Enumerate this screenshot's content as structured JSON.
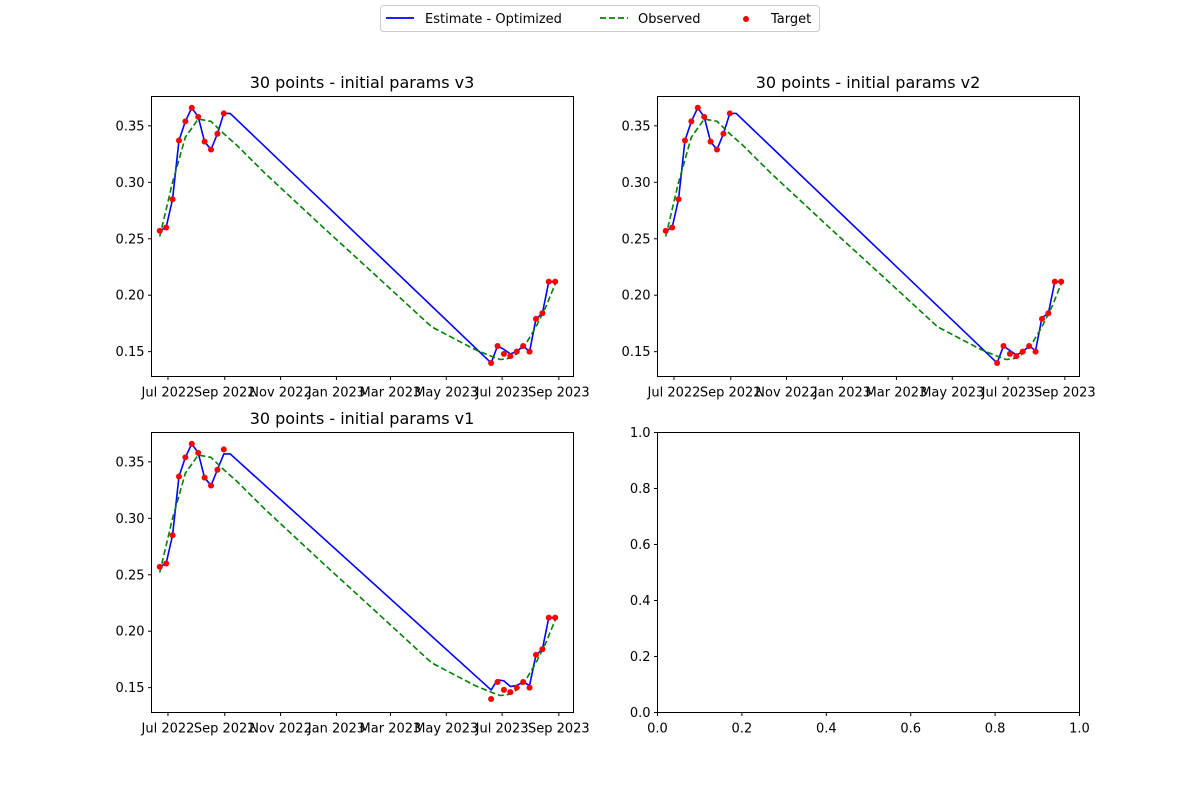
{
  "legend": {
    "entries": [
      {
        "label": "Estimate - Optimized",
        "color": "#0000ff",
        "style": "solid"
      },
      {
        "label": "Observed",
        "color": "#008000",
        "style": "dashed"
      },
      {
        "label": "Target",
        "color": "#ff0000",
        "style": "marker"
      }
    ],
    "placement": "top-center"
  },
  "chart_data": [
    {
      "type": "line",
      "title": "30 points - initial params v3",
      "xlabel": "",
      "ylabel": "",
      "x_type": "date",
      "xlim": [
        "2022-06-13",
        "2023-09-17"
      ],
      "ylim": [
        0.128,
        0.376
      ],
      "x_ticks": [
        "2022-07-01",
        "2022-09-01",
        "2022-11-01",
        "2023-01-01",
        "2023-03-01",
        "2023-05-01",
        "2023-07-01",
        "2023-09-01"
      ],
      "x_tick_labels": [
        "Jul 2022",
        "Sep 2022",
        "Nov 2022",
        "Jan 2023",
        "Mar 2023",
        "May 2023",
        "Jul 2023",
        "Sep 2023"
      ],
      "y_ticks": [
        0.15,
        0.2,
        0.25,
        0.3,
        0.35
      ],
      "y_tick_labels": [
        "0.15",
        "0.20",
        "0.25",
        "0.30",
        "0.35"
      ],
      "series": [
        {
          "name": "Estimate - Optimized",
          "style": "line",
          "color": "#0000ff",
          "x": [
            "2022-06-22",
            "2022-06-29",
            "2022-07-06",
            "2022-07-13",
            "2022-07-20",
            "2022-07-27",
            "2022-08-03",
            "2022-08-10",
            "2022-08-17",
            "2022-08-24",
            "2022-08-31",
            "2022-09-07",
            "2023-06-19",
            "2023-06-26",
            "2023-07-03",
            "2023-07-10",
            "2023-07-17",
            "2023-07-24",
            "2023-07-31",
            "2023-08-07",
            "2023-08-14",
            "2023-08-21",
            "2023-08-28"
          ],
          "y": [
            0.257,
            0.26,
            0.285,
            0.337,
            0.354,
            0.366,
            0.358,
            0.336,
            0.329,
            0.343,
            0.361,
            0.361,
            0.14,
            0.155,
            0.152,
            0.148,
            0.15,
            0.155,
            0.15,
            0.179,
            0.184,
            0.212,
            0.212
          ]
        },
        {
          "name": "Observed",
          "style": "dashed",
          "color": "#008000",
          "x": [
            "2022-06-22",
            "2022-07-06",
            "2022-07-20",
            "2022-08-03",
            "2022-08-17",
            "2022-08-31",
            "2022-09-14",
            "2022-10-15",
            "2022-12-15",
            "2023-02-15",
            "2023-04-15",
            "2023-06-01",
            "2023-06-19",
            "2023-06-29",
            "2023-07-08",
            "2023-07-17",
            "2023-07-27",
            "2023-08-07",
            "2023-08-18",
            "2023-08-28"
          ],
          "y": [
            0.252,
            0.3,
            0.34,
            0.356,
            0.354,
            0.343,
            0.333,
            0.308,
            0.262,
            0.216,
            0.172,
            0.152,
            0.146,
            0.143,
            0.144,
            0.148,
            0.157,
            0.172,
            0.19,
            0.21
          ]
        },
        {
          "name": "Target",
          "style": "scatter",
          "color": "#ff0000",
          "x": [
            "2022-06-22",
            "2022-06-29",
            "2022-07-06",
            "2022-07-13",
            "2022-07-20",
            "2022-07-27",
            "2022-08-03",
            "2022-08-10",
            "2022-08-17",
            "2022-08-24",
            "2022-08-31",
            "2023-06-19",
            "2023-06-26",
            "2023-07-03",
            "2023-07-10",
            "2023-07-17",
            "2023-07-24",
            "2023-07-31",
            "2023-08-07",
            "2023-08-14",
            "2023-08-21",
            "2023-08-28"
          ],
          "y": [
            0.257,
            0.26,
            0.285,
            0.337,
            0.354,
            0.366,
            0.358,
            0.336,
            0.329,
            0.343,
            0.361,
            0.14,
            0.155,
            0.148,
            0.146,
            0.15,
            0.155,
            0.15,
            0.179,
            0.184,
            0.212,
            0.212
          ]
        }
      ]
    },
    {
      "type": "line",
      "title": "30 points - initial params v2",
      "xlabel": "",
      "ylabel": "",
      "x_type": "date",
      "xlim": [
        "2022-06-13",
        "2023-09-17"
      ],
      "ylim": [
        0.128,
        0.376
      ],
      "x_ticks": [
        "2022-07-01",
        "2022-09-01",
        "2022-11-01",
        "2023-01-01",
        "2023-03-01",
        "2023-05-01",
        "2023-07-01",
        "2023-09-01"
      ],
      "x_tick_labels": [
        "Jul 2022",
        "Sep 2022",
        "Nov 2022",
        "Jan 2023",
        "Mar 2023",
        "May 2023",
        "Jul 2023",
        "Sep 2023"
      ],
      "y_ticks": [
        0.15,
        0.2,
        0.25,
        0.3,
        0.35
      ],
      "y_tick_labels": [
        "0.15",
        "0.20",
        "0.25",
        "0.30",
        "0.35"
      ],
      "series": [
        {
          "name": "Estimate - Optimized",
          "style": "line",
          "color": "#0000ff",
          "x": [
            "2022-06-22",
            "2022-06-29",
            "2022-07-06",
            "2022-07-13",
            "2022-07-20",
            "2022-07-27",
            "2022-08-03",
            "2022-08-10",
            "2022-08-17",
            "2022-08-24",
            "2022-08-31",
            "2022-09-07",
            "2023-06-19",
            "2023-06-26",
            "2023-07-03",
            "2023-07-10",
            "2023-07-17",
            "2023-07-24",
            "2023-07-31",
            "2023-08-07",
            "2023-08-14",
            "2023-08-21",
            "2023-08-28"
          ],
          "y": [
            0.257,
            0.26,
            0.285,
            0.337,
            0.354,
            0.366,
            0.358,
            0.336,
            0.329,
            0.343,
            0.361,
            0.361,
            0.14,
            0.155,
            0.151,
            0.147,
            0.15,
            0.155,
            0.151,
            0.18,
            0.184,
            0.212,
            0.212
          ]
        },
        {
          "name": "Observed",
          "style": "dashed",
          "color": "#008000",
          "x": [
            "2022-06-22",
            "2022-07-06",
            "2022-07-20",
            "2022-08-03",
            "2022-08-17",
            "2022-08-31",
            "2022-09-14",
            "2022-10-15",
            "2022-12-15",
            "2023-02-15",
            "2023-04-15",
            "2023-06-01",
            "2023-06-19",
            "2023-06-29",
            "2023-07-08",
            "2023-07-17",
            "2023-07-27",
            "2023-08-07",
            "2023-08-18",
            "2023-08-28"
          ],
          "y": [
            0.252,
            0.3,
            0.34,
            0.356,
            0.354,
            0.343,
            0.333,
            0.308,
            0.262,
            0.216,
            0.172,
            0.152,
            0.146,
            0.143,
            0.144,
            0.148,
            0.157,
            0.172,
            0.19,
            0.21
          ]
        },
        {
          "name": "Target",
          "style": "scatter",
          "color": "#ff0000",
          "x": [
            "2022-06-22",
            "2022-06-29",
            "2022-07-06",
            "2022-07-13",
            "2022-07-20",
            "2022-07-27",
            "2022-08-03",
            "2022-08-10",
            "2022-08-17",
            "2022-08-24",
            "2022-08-31",
            "2023-06-19",
            "2023-06-26",
            "2023-07-03",
            "2023-07-10",
            "2023-07-17",
            "2023-07-24",
            "2023-07-31",
            "2023-08-07",
            "2023-08-14",
            "2023-08-21",
            "2023-08-28"
          ],
          "y": [
            0.257,
            0.26,
            0.285,
            0.337,
            0.354,
            0.366,
            0.358,
            0.336,
            0.329,
            0.343,
            0.361,
            0.14,
            0.155,
            0.148,
            0.146,
            0.15,
            0.155,
            0.15,
            0.179,
            0.184,
            0.212,
            0.212
          ]
        }
      ]
    },
    {
      "type": "line",
      "title": "30 points - initial params v1",
      "xlabel": "",
      "ylabel": "",
      "x_type": "date",
      "xlim": [
        "2022-06-13",
        "2023-09-17"
      ],
      "ylim": [
        0.128,
        0.376
      ],
      "x_ticks": [
        "2022-07-01",
        "2022-09-01",
        "2022-11-01",
        "2023-01-01",
        "2023-03-01",
        "2023-05-01",
        "2023-07-01",
        "2023-09-01"
      ],
      "x_tick_labels": [
        "Jul 2022",
        "Sep 2022",
        "Nov 2022",
        "Jan 2023",
        "Mar 2023",
        "May 2023",
        "Jul 2023",
        "Sep 2023"
      ],
      "y_ticks": [
        0.15,
        0.2,
        0.25,
        0.3,
        0.35
      ],
      "y_tick_labels": [
        "0.15",
        "0.20",
        "0.25",
        "0.30",
        "0.35"
      ],
      "series": [
        {
          "name": "Estimate - Optimized",
          "style": "line",
          "color": "#0000ff",
          "x": [
            "2022-06-22",
            "2022-06-29",
            "2022-07-06",
            "2022-07-13",
            "2022-07-20",
            "2022-07-27",
            "2022-08-03",
            "2022-08-10",
            "2022-08-17",
            "2022-08-24",
            "2022-08-31",
            "2022-09-07",
            "2023-06-19",
            "2023-06-26",
            "2023-07-03",
            "2023-07-10",
            "2023-07-17",
            "2023-07-24",
            "2023-07-31",
            "2023-08-07",
            "2023-08-14",
            "2023-08-21",
            "2023-08-28"
          ],
          "y": [
            0.257,
            0.26,
            0.285,
            0.337,
            0.354,
            0.366,
            0.358,
            0.336,
            0.329,
            0.343,
            0.357,
            0.357,
            0.148,
            0.157,
            0.156,
            0.151,
            0.152,
            0.155,
            0.152,
            0.179,
            0.184,
            0.212,
            0.212
          ]
        },
        {
          "name": "Observed",
          "style": "dashed",
          "color": "#008000",
          "x": [
            "2022-06-22",
            "2022-07-06",
            "2022-07-20",
            "2022-08-03",
            "2022-08-17",
            "2022-08-31",
            "2022-09-14",
            "2022-10-15",
            "2022-12-15",
            "2023-02-15",
            "2023-04-15",
            "2023-06-01",
            "2023-06-19",
            "2023-06-29",
            "2023-07-08",
            "2023-07-17",
            "2023-07-27",
            "2023-08-07",
            "2023-08-18",
            "2023-08-28"
          ],
          "y": [
            0.252,
            0.3,
            0.34,
            0.356,
            0.354,
            0.343,
            0.333,
            0.308,
            0.262,
            0.216,
            0.172,
            0.152,
            0.146,
            0.143,
            0.144,
            0.148,
            0.157,
            0.172,
            0.19,
            0.21
          ]
        },
        {
          "name": "Target",
          "style": "scatter",
          "color": "#ff0000",
          "x": [
            "2022-06-22",
            "2022-06-29",
            "2022-07-06",
            "2022-07-13",
            "2022-07-20",
            "2022-07-27",
            "2022-08-03",
            "2022-08-10",
            "2022-08-17",
            "2022-08-24",
            "2022-08-31",
            "2023-06-19",
            "2023-06-26",
            "2023-07-03",
            "2023-07-10",
            "2023-07-17",
            "2023-07-24",
            "2023-07-31",
            "2023-08-07",
            "2023-08-14",
            "2023-08-21",
            "2023-08-28"
          ],
          "y": [
            0.257,
            0.26,
            0.285,
            0.337,
            0.354,
            0.366,
            0.358,
            0.336,
            0.329,
            0.343,
            0.361,
            0.14,
            0.155,
            0.148,
            0.146,
            0.15,
            0.155,
            0.15,
            0.179,
            0.184,
            0.212,
            0.212
          ]
        }
      ]
    },
    {
      "type": "line",
      "title": "",
      "xlabel": "",
      "ylabel": "",
      "xlim": [
        0,
        1
      ],
      "ylim": [
        0,
        1
      ],
      "x_ticks": [
        0.0,
        0.2,
        0.4,
        0.6,
        0.8,
        1.0
      ],
      "x_tick_labels": [
        "0.0",
        "0.2",
        "0.4",
        "0.6",
        "0.8",
        "1.0"
      ],
      "y_ticks": [
        0.0,
        0.2,
        0.4,
        0.6,
        0.8,
        1.0
      ],
      "y_tick_labels": [
        "0.0",
        "0.2",
        "0.4",
        "0.6",
        "0.8",
        "1.0"
      ],
      "series": []
    }
  ]
}
